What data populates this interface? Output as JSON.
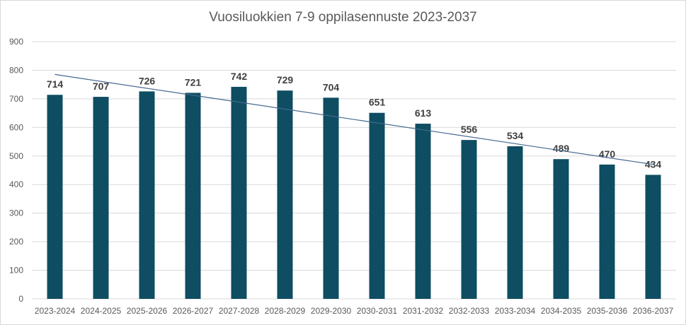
{
  "chart_data": {
    "type": "bar",
    "title": "Vuosiluokkien 7-9 oppilasennuste 2023-2037",
    "xlabel": "",
    "ylabel": "",
    "categories": [
      "2023-2024",
      "2024-2025",
      "2025-2026",
      "2026-2027",
      "2027-2028",
      "2028-2029",
      "2029-2030",
      "2030-2031",
      "2031-2032",
      "2032-2033",
      "2033-2034",
      "2034-2035",
      "2035-2036",
      "2036-2037"
    ],
    "values": [
      714,
      707,
      726,
      721,
      742,
      729,
      704,
      651,
      613,
      556,
      534,
      489,
      470,
      434
    ],
    "ylim": [
      0,
      900
    ],
    "yticks": [
      0,
      100,
      200,
      300,
      400,
      500,
      600,
      700,
      800,
      900
    ],
    "grid": true,
    "data_labels": true,
    "trendline": "linear",
    "colors": {
      "bar": "#0e4d62",
      "trendline": "#44698f",
      "grid": "#d9d9d9"
    }
  }
}
